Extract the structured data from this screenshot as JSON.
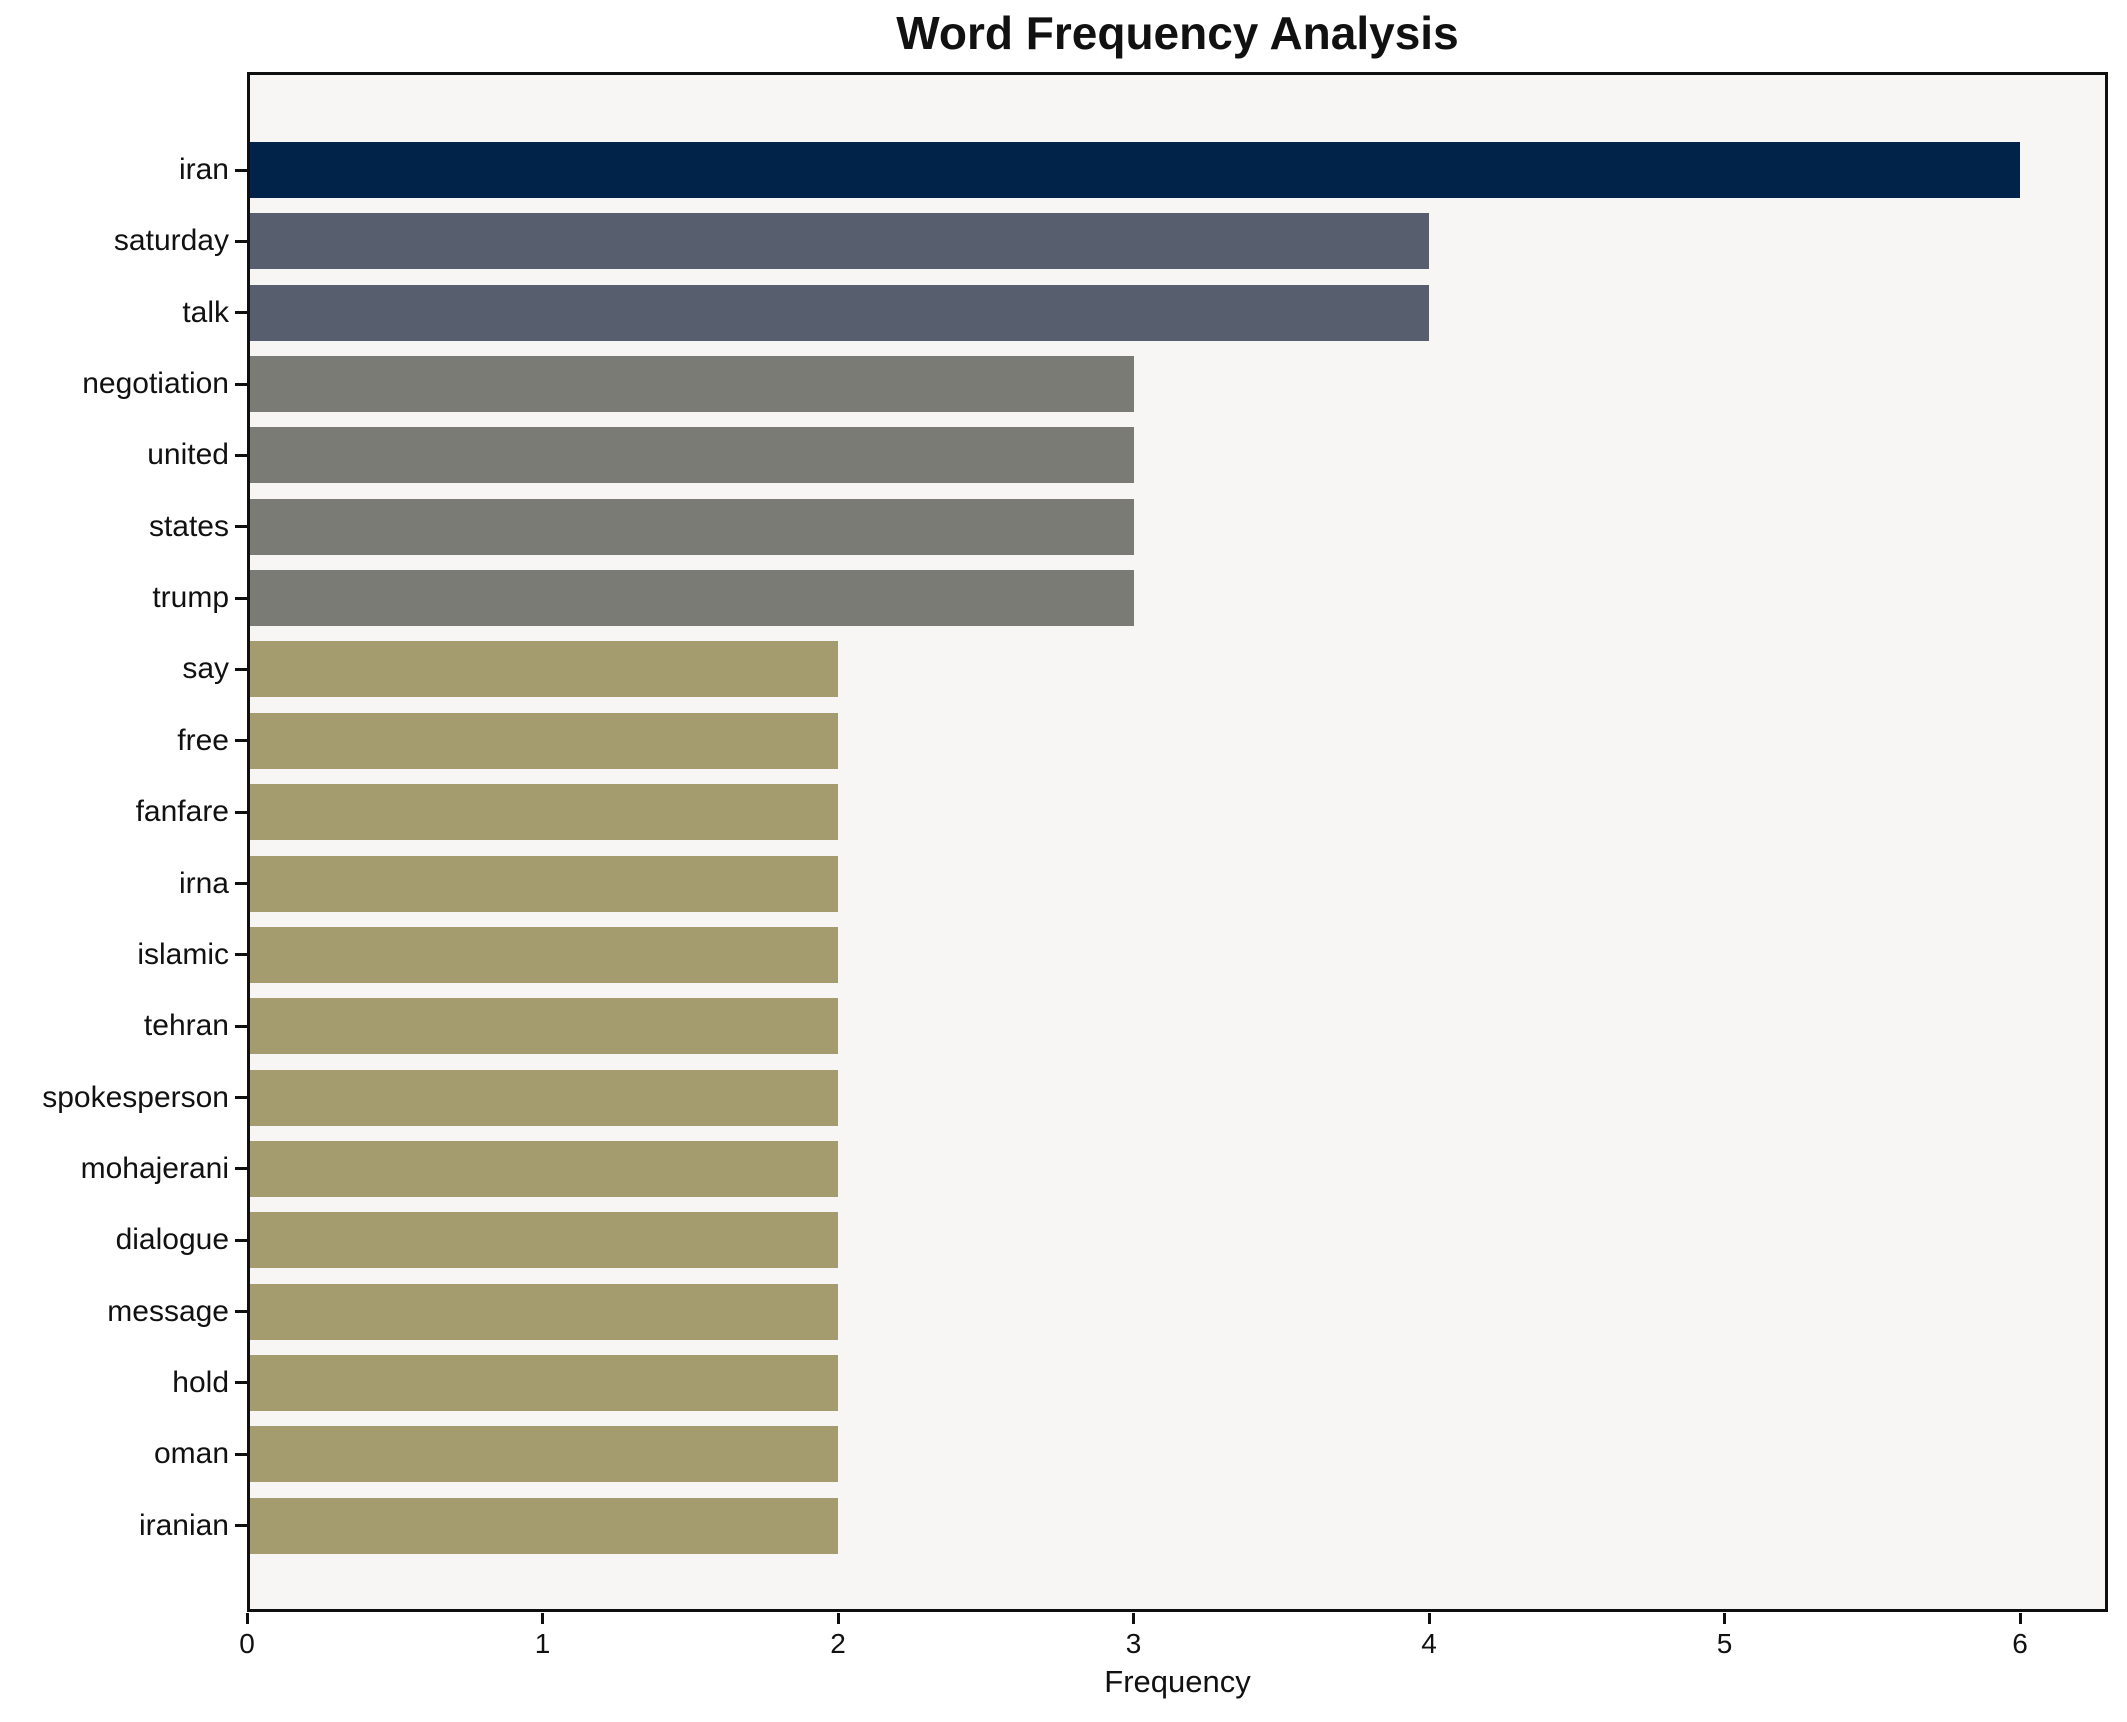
{
  "chart_data": {
    "type": "bar",
    "orientation": "horizontal",
    "title": "Word Frequency Analysis",
    "xlabel": "Frequency",
    "ylabel": "",
    "xlim": [
      0,
      6.3
    ],
    "xticks": [
      0,
      1,
      2,
      3,
      4,
      5,
      6
    ],
    "grid": false,
    "legend": "none",
    "colors": {
      "figure_bg": "#ffffff",
      "plot_bg": "#f7f6f4",
      "spine": "#0f0f0f",
      "text": "#111111",
      "bar_high": "#022349",
      "bar_mid_high": "#575f6e",
      "bar_mid": "#7b7b75",
      "bar_low": "#a49c6e"
    },
    "bars": [
      {
        "label": "iran",
        "value": 6,
        "color": "#022349"
      },
      {
        "label": "saturday",
        "value": 4,
        "color": "#575f6e"
      },
      {
        "label": "talk",
        "value": 4,
        "color": "#575f6e"
      },
      {
        "label": "negotiation",
        "value": 3,
        "color": "#7b7b75"
      },
      {
        "label": "united",
        "value": 3,
        "color": "#7b7b75"
      },
      {
        "label": "states",
        "value": 3,
        "color": "#7b7b75"
      },
      {
        "label": "trump",
        "value": 3,
        "color": "#7b7b75"
      },
      {
        "label": "say",
        "value": 2,
        "color": "#a49c6e"
      },
      {
        "label": "free",
        "value": 2,
        "color": "#a49c6e"
      },
      {
        "label": "fanfare",
        "value": 2,
        "color": "#a49c6e"
      },
      {
        "label": "irna",
        "value": 2,
        "color": "#a49c6e"
      },
      {
        "label": "islamic",
        "value": 2,
        "color": "#a49c6e"
      },
      {
        "label": "tehran",
        "value": 2,
        "color": "#a49c6e"
      },
      {
        "label": "spokesperson",
        "value": 2,
        "color": "#a49c6e"
      },
      {
        "label": "mohajerani",
        "value": 2,
        "color": "#a49c6e"
      },
      {
        "label": "dialogue",
        "value": 2,
        "color": "#a49c6e"
      },
      {
        "label": "message",
        "value": 2,
        "color": "#a49c6e"
      },
      {
        "label": "hold",
        "value": 2,
        "color": "#a49c6e"
      },
      {
        "label": "oman",
        "value": 2,
        "color": "#a49c6e"
      },
      {
        "label": "iranian",
        "value": 2,
        "color": "#a49c6e"
      }
    ]
  }
}
